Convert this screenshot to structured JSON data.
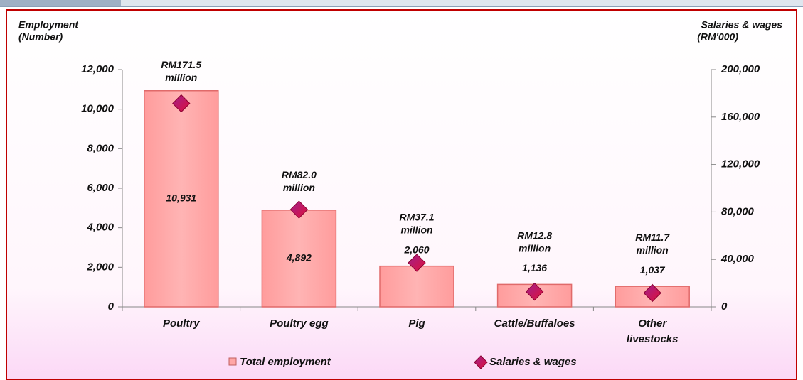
{
  "chart_data": {
    "type": "bar",
    "y_label": [
      "Employment",
      "(Number)"
    ],
    "y2_label": [
      "Salaries & wages",
      "(RM'000)"
    ],
    "categories": [
      "Poultry",
      "Poultry egg",
      "Pig",
      "Cattle/Buffaloes",
      "Other livestocks"
    ],
    "series": [
      {
        "name": "Total employment",
        "type": "bar",
        "color": "#ffa6a6",
        "values": [
          10931,
          4892,
          2060,
          1136,
          1037
        ],
        "value_labels": [
          "10,931",
          "4,892",
          "2,060",
          "1,136",
          "1,037"
        ]
      },
      {
        "name": "Salaries & wages",
        "type": "marker",
        "axis": "y2",
        "color": "#c0143c",
        "values": [
          171500,
          82000,
          37100,
          12800,
          11700
        ],
        "value_labels": [
          "RM171.5 million",
          "RM82.0 million",
          "RM37.1 million",
          "RM12.8 million",
          "RM11.7 million"
        ]
      }
    ],
    "ylim": [
      0,
      12000
    ],
    "yticks": [
      0,
      {
        "value": 2000,
        "label": "2,000"
      },
      {
        "value": 4000,
        "label": "4,000"
      },
      {
        "value": 6000,
        "label": "6,000"
      },
      {
        "value": 8000,
        "label": "8,000"
      },
      {
        "value": 10000,
        "label": "10,000"
      },
      {
        "value": 12000,
        "label": "12,000"
      }
    ],
    "y2lim": [
      0,
      200000
    ],
    "y2ticks": [
      0,
      {
        "value": 40000,
        "label": "40,000"
      },
      {
        "value": 80000,
        "label": "80,000"
      },
      {
        "value": 120000,
        "label": "120,000"
      },
      {
        "value": 160000,
        "label": "160,000"
      },
      {
        "value": 200000,
        "label": "200,000"
      }
    ],
    "legend": "bottom"
  }
}
